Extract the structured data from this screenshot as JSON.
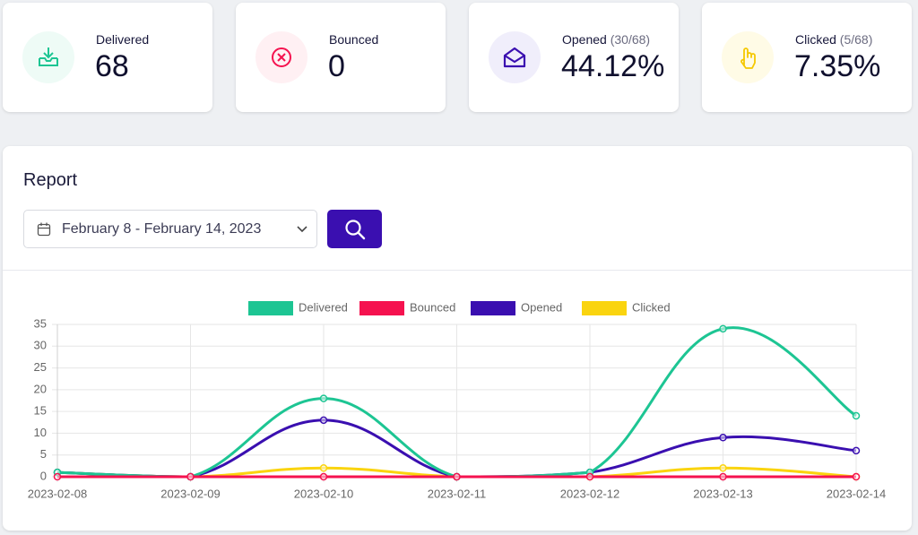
{
  "cards": [
    {
      "label": "Delivered",
      "value": "68"
    },
    {
      "label": "Bounced",
      "value": "0"
    },
    {
      "label": "Opened",
      "detail": "(30/68)",
      "value": "44.12%"
    },
    {
      "label": "Clicked",
      "detail": "(5/68)",
      "value": "7.35%"
    }
  ],
  "report": {
    "title": "Report",
    "date_range": "February 8 - February 14, 2023"
  },
  "chart_data": {
    "type": "line",
    "categories": [
      "2023-02-08",
      "2023-02-09",
      "2023-02-10",
      "2023-02-11",
      "2023-02-12",
      "2023-02-13",
      "2023-02-14"
    ],
    "series": [
      {
        "name": "Delivered",
        "color": "#1dc593",
        "values": [
          1,
          0,
          18,
          0,
          1,
          34,
          14
        ]
      },
      {
        "name": "Bounced",
        "color": "#f5124f",
        "values": [
          0,
          0,
          0,
          0,
          0,
          0,
          0
        ]
      },
      {
        "name": "Opened",
        "color": "#3a0fb0",
        "values": [
          1,
          0,
          13,
          0,
          1,
          9,
          6
        ]
      },
      {
        "name": "Clicked",
        "color": "#fad40f",
        "values": [
          1,
          0,
          2,
          0,
          0,
          2,
          0
        ]
      }
    ],
    "ylim": [
      0,
      35
    ],
    "yticks": [
      0,
      5,
      10,
      15,
      20,
      25,
      30,
      35
    ],
    "grid": true,
    "legend": "top"
  }
}
